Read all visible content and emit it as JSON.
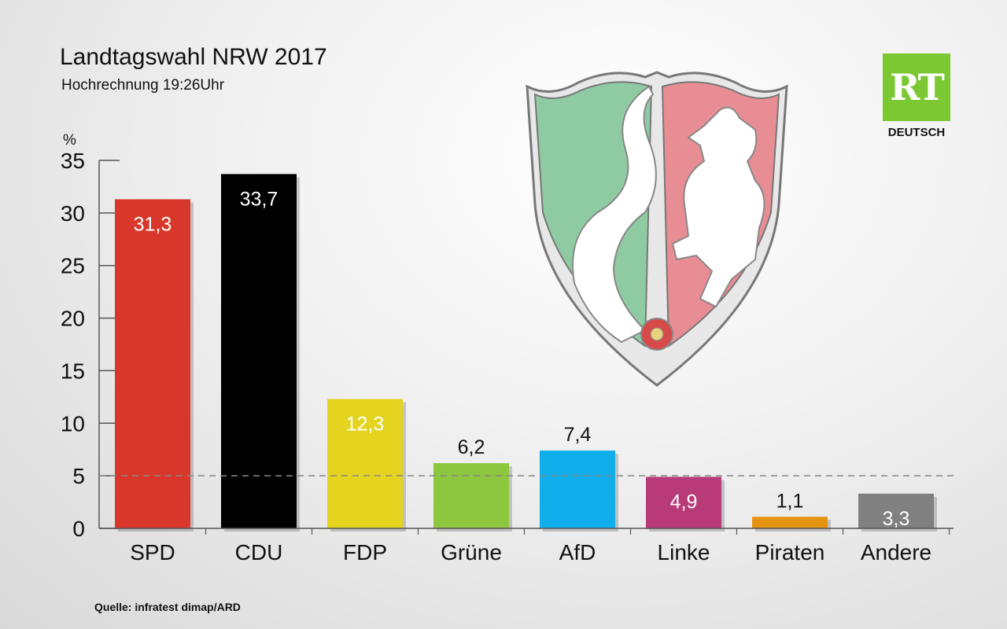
{
  "header": {
    "title": "Landtagswahl NRW 2017",
    "subtitle": "Hochrechnung 19:26Uhr",
    "unit": "%",
    "source": "Quelle: infratest dimap/ARD"
  },
  "brand": {
    "logo_text": "RT",
    "logo_sub": "DEUTSCH",
    "logo_color": "#7bc832"
  },
  "crest": {
    "icon": "nrw-coat-of-arms-icon"
  },
  "chart_data": {
    "type": "bar",
    "categories": [
      "SPD",
      "CDU",
      "FDP",
      "Grüne",
      "AfD",
      "Linke",
      "Piraten",
      "Andere"
    ],
    "values": [
      31.3,
      33.7,
      12.3,
      6.2,
      7.4,
      4.9,
      1.1,
      3.3
    ],
    "value_labels": [
      "31,3",
      "33,7",
      "12,3",
      "6,2",
      "7,4",
      "4,9",
      "1,1",
      "3,3"
    ],
    "label_inside": [
      true,
      true,
      true,
      false,
      false,
      true,
      false,
      true
    ],
    "colors": [
      "#d9372b",
      "#000000",
      "#e4d31f",
      "#8dc63f",
      "#10aeea",
      "#b93a78",
      "#e59412",
      "#808080"
    ],
    "ylim": [
      0,
      35
    ],
    "yticks": [
      0,
      5,
      10,
      15,
      20,
      25,
      30,
      35
    ],
    "threshold": 5,
    "ylabel": "%",
    "grid": false
  }
}
